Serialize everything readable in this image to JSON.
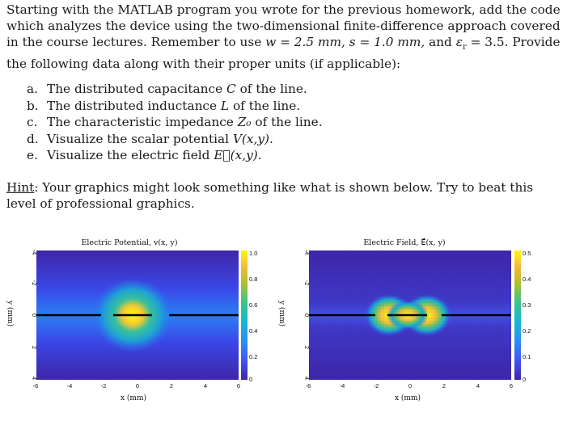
{
  "intro": {
    "text": "Starting with the MATLAB program you wrote for the previous homework, add the code which analyzes the device using the two-dimensional finite-difference approach covered in the course lectures. Remember to use ",
    "w_eq": "w = 2.5 mm,",
    "s_eq": "s = 1.0 mm,",
    "and": " and ",
    "er_eq": "ε",
    "er_sub": "r",
    "er_val": " = 3.5.",
    "tail": " Provide the following data along with their proper units (if applicable):"
  },
  "items": [
    {
      "marker": "a.",
      "text": "The distributed capacitance ",
      "sym": "C",
      "rest": " of the line."
    },
    {
      "marker": "b.",
      "text": "The distributed inductance ",
      "sym": "L",
      "rest": " of the line."
    },
    {
      "marker": "c.",
      "text": "The characteristic impedance ",
      "sym": "Z₀",
      "rest": " of the line."
    },
    {
      "marker": "d.",
      "text": "Visualize the scalar potential ",
      "sym": "V(x,y)",
      "rest": "."
    },
    {
      "marker": "e.",
      "text": "Visualize the electric field ",
      "sym": "E⃗(x,y)",
      "rest": "."
    }
  ],
  "hint": {
    "label": "Hint",
    "text": ": Your graphics might look something like what is shown below. Try to beat this level of professional graphics."
  },
  "figures": [
    {
      "title": "Electric Potential, v(x, y)",
      "xlabel": "x (mm)",
      "ylabel": "y (mm)",
      "xticks": [
        "-6",
        "-4",
        "-2",
        "0",
        "2",
        "4",
        "6"
      ],
      "yticks": [
        "-4",
        "-2",
        "0",
        "2",
        "4"
      ],
      "cbar_ticks": [
        "1.0",
        "0.8",
        "0.6",
        "0.4",
        "0.2",
        "0"
      ],
      "chart_data": {
        "type": "heatmap",
        "title": "Electric Potential, v(x, y)",
        "xlabel": "x (mm)",
        "ylabel": "y (mm)",
        "xlim": [
          -6,
          6
        ],
        "ylim": [
          -4,
          4
        ],
        "clim": [
          0,
          1.0
        ],
        "colormap": "parula",
        "conductors": [
          {
            "x": [
              -4.8,
              -1.3
            ],
            "y": 0
          },
          {
            "x": [
              -0.9,
              1.0
            ],
            "y": 0
          },
          {
            "x": [
              1.3,
              4.8
            ],
            "y": 0
          }
        ]
      }
    },
    {
      "title": "Electric Field, E⃗(x, y)",
      "xlabel": "x (mm)",
      "ylabel": "y (mm)",
      "xticks": [
        "-6",
        "-4",
        "-2",
        "0",
        "2",
        "4",
        "6"
      ],
      "yticks": [
        "-4",
        "-2",
        "0",
        "2",
        "4"
      ],
      "cbar_ticks": [
        "0.5",
        "0.4",
        "0.3",
        "0.2",
        "0.1",
        "0"
      ],
      "chart_data": {
        "type": "heatmap",
        "title": "Electric Field, E⃗(x, y)",
        "xlabel": "x (mm)",
        "ylabel": "y (mm)",
        "xlim": [
          -6,
          6
        ],
        "ylim": [
          -4,
          4
        ],
        "clim": [
          0,
          0.5
        ],
        "colormap": "parula",
        "conductors": [
          {
            "x": [
              -4.8,
              -1.3
            ],
            "y": 0
          },
          {
            "x": [
              -0.9,
              1.0
            ],
            "y": 0
          },
          {
            "x": [
              1.3,
              4.8
            ],
            "y": 0
          }
        ]
      }
    }
  ]
}
